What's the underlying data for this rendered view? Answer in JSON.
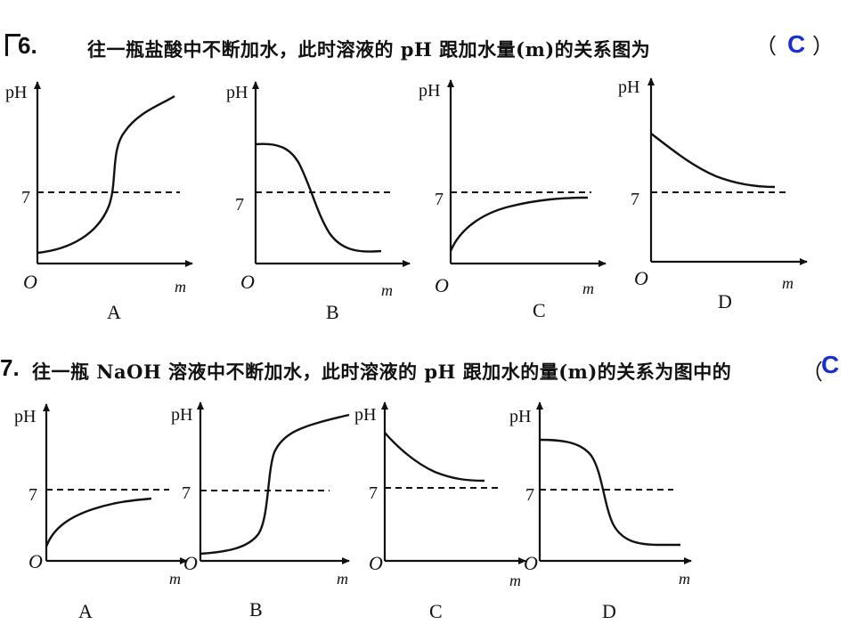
{
  "q6": {
    "number": "6.",
    "text": "往一瓶盐酸中不断加水，此时溶液的 pH 跟加水量(m)的关系图为",
    "paren_open": "（",
    "answer": "C",
    "paren_close": "）"
  },
  "q7": {
    "number": "7.",
    "text": "往一瓶 NaOH 溶液中不断加水，此时溶液的 pH 跟加水的量(m)的关系为图中的",
    "paren_open": "（",
    "answer": "C"
  },
  "graph_labels": {
    "y_axis": "pH",
    "x_axis": "m",
    "origin": "O",
    "ref_tick": "7"
  },
  "q6_graphs": [
    {
      "label": "A",
      "shape": "rising-s-curve"
    },
    {
      "label": "B",
      "shape": "falling-s-curve"
    },
    {
      "label": "C",
      "shape": "rising-approaching-7"
    },
    {
      "label": "D",
      "shape": "falling-approaching-7"
    }
  ],
  "q7_graphs": [
    {
      "label": "A",
      "shape": "rising-approaching-7"
    },
    {
      "label": "B",
      "shape": "rising-s-curve"
    },
    {
      "label": "C",
      "shape": "falling-approaching-7"
    },
    {
      "label": "D",
      "shape": "falling-s-curve"
    }
  ]
}
